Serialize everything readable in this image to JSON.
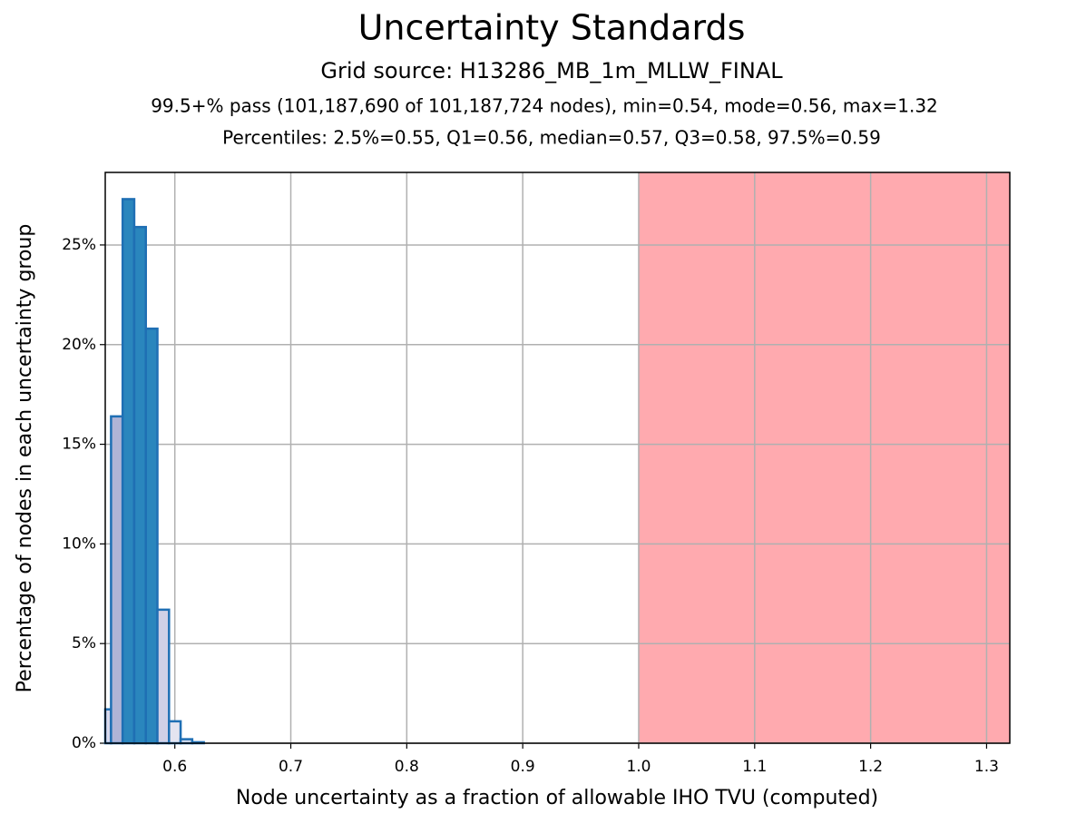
{
  "chart_data": {
    "type": "histogram",
    "title": "Uncertainty Standards",
    "subtitle": "Grid source: H13286_MB_1m_MLLW_FINAL",
    "annotations": [
      "99.5+% pass (101,187,690 of 101,187,724 nodes), min=0.54, mode=0.56, max=1.32",
      "Percentiles: 2.5%=0.55, Q1=0.56, median=0.57, Q3=0.58, 97.5%=0.59"
    ],
    "x_label": "Node uncertainty as a fraction of allowable IHO TVU (computed)",
    "y_label": "Percentage of nodes in each uncertainty group",
    "bins": [
      0.54,
      0.545,
      0.555,
      0.565,
      0.575,
      0.585,
      0.595,
      0.605,
      0.615,
      0.625
    ],
    "values": [
      1.7,
      16.4,
      27.3,
      25.9,
      20.8,
      6.7,
      1.1,
      0.2,
      0.05
    ],
    "bar_colors": [
      "#d8d8ec",
      "#b0b4d6",
      "#2a86bd",
      "#2a86bd",
      "#2a86bd",
      "#d0d0e6",
      "#e4e4f0",
      "#e4e4f0",
      "#e4e4f0"
    ],
    "edge_color": "#1f6fb4",
    "shaded_region": {
      "range": [
        1.0,
        1.32
      ],
      "color": "#ffaaaf"
    },
    "xlim": [
      0.54,
      1.32
    ],
    "xticks": [
      0.6,
      0.7,
      0.8,
      0.9,
      {
        "value": 1.0,
        "label": "1.0"
      },
      1.1,
      1.2,
      1.3
    ],
    "ylim": [
      0,
      28.64
    ],
    "yticks": [
      {
        "value": 0,
        "label": "0%"
      },
      {
        "value": 5,
        "label": "5%"
      },
      {
        "value": 10,
        "label": "10%"
      },
      {
        "value": 15,
        "label": "15%"
      },
      {
        "value": 20,
        "label": "20%"
      },
      {
        "value": 25,
        "label": "25%"
      }
    ],
    "grid": true
  }
}
